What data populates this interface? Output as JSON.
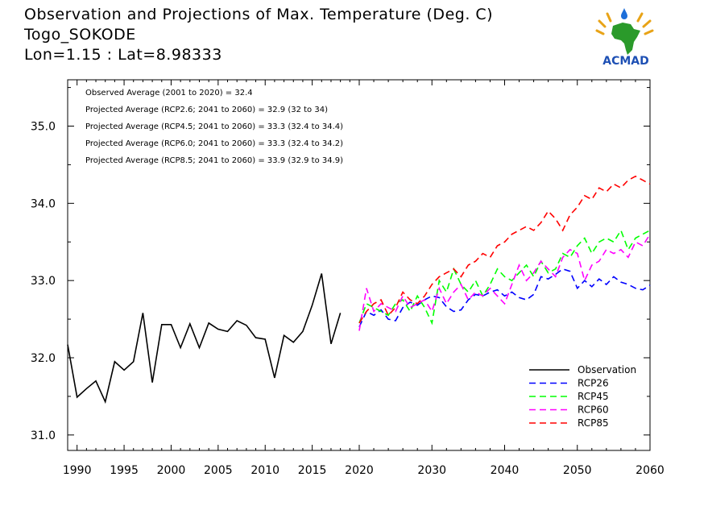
{
  "header": {
    "title_line1": "Observation and Projections of Max. Temperature (Deg. C)",
    "title_line2": "Togo_SOKODE",
    "title_line3": "Lon=1.15 : Lat=8.98333"
  },
  "logo": {
    "text": "ACMAD"
  },
  "chart_data": {
    "type": "line",
    "xlim": [
      1989,
      2060
    ],
    "ylim": [
      30.8,
      35.6
    ],
    "x_ticks": [
      1990,
      1995,
      2000,
      2005,
      2010,
      2015,
      2020,
      2030,
      2040,
      2050,
      2060
    ],
    "y_ticks": [
      31.0,
      32.0,
      33.0,
      34.0,
      35.0
    ],
    "y_tick_labels": [
      "31.0",
      "32.0",
      "33.0",
      "34.0",
      "35.0"
    ],
    "annotations": [
      "Observed Average (2001 to 2020) = 32.4",
      "Projected Average (RCP2.6; 2041 to 2060) = 32.9 (32 to 34)",
      "Projected Average (RCP4.5; 2041 to 2060) = 33.3 (32.4 to 34.4)",
      "Projected Average (RCP6.0; 2041 to 2060) = 33.3 (32.4 to 34.2)",
      "Projected Average (RCP8.5; 2041 to 2060) = 33.9 (32.9 to 34.9)"
    ],
    "legend_position": "bottom-right",
    "series": [
      {
        "name": "Observation",
        "color": "#000000",
        "dashed": false,
        "start": 1989,
        "values": [
          32.17,
          31.49,
          31.6,
          31.7,
          31.43,
          31.95,
          31.84,
          31.95,
          32.58,
          31.68,
          32.43,
          32.43,
          32.13,
          32.44,
          32.13,
          32.45,
          32.37,
          32.34,
          32.48,
          32.42,
          32.26,
          32.24,
          31.74,
          32.29,
          32.2,
          32.34,
          32.68,
          33.09,
          32.18,
          32.58
        ]
      },
      {
        "name": "RCP26",
        "color": "#0000ff",
        "dashed": true,
        "start": 2020,
        "values": [
          32.4,
          32.6,
          32.55,
          32.62,
          32.5,
          32.48,
          32.65,
          32.72,
          32.68,
          32.75,
          32.8,
          32.78,
          32.66,
          32.6,
          32.62,
          32.75,
          32.82,
          32.8,
          32.85,
          32.88,
          32.8,
          32.85,
          32.78,
          32.75,
          32.82,
          33.05,
          33.02,
          33.08,
          33.15,
          33.12,
          32.9,
          33.0,
          32.92,
          33.02,
          32.95,
          33.05,
          32.98,
          32.95,
          32.9,
          32.88,
          32.94
        ]
      },
      {
        "name": "RCP45",
        "color": "#00ff00",
        "dashed": true,
        "start": 2020,
        "values": [
          32.45,
          32.7,
          32.65,
          32.6,
          32.55,
          32.7,
          32.75,
          32.6,
          32.8,
          32.65,
          32.45,
          33.0,
          32.85,
          33.15,
          32.95,
          32.85,
          33.0,
          32.8,
          32.95,
          33.15,
          33.05,
          33.0,
          33.1,
          33.2,
          33.05,
          33.25,
          33.1,
          33.15,
          33.35,
          33.3,
          33.45,
          33.55,
          33.35,
          33.5,
          33.55,
          33.5,
          33.65,
          33.4,
          33.55,
          33.6,
          33.65
        ]
      },
      {
        "name": "RCP60",
        "color": "#ff00ff",
        "dashed": true,
        "start": 2020,
        "values": [
          32.35,
          32.9,
          32.6,
          32.7,
          32.65,
          32.6,
          32.8,
          32.65,
          32.7,
          32.75,
          32.6,
          32.9,
          32.7,
          32.85,
          32.95,
          32.75,
          32.85,
          32.8,
          32.9,
          32.8,
          32.7,
          32.95,
          33.2,
          33.0,
          33.1,
          33.25,
          33.15,
          33.05,
          33.3,
          33.4,
          33.35,
          33.0,
          33.2,
          33.25,
          33.4,
          33.35,
          33.4,
          33.3,
          33.5,
          33.45,
          33.6
        ]
      },
      {
        "name": "RCP85",
        "color": "#ff0000",
        "dashed": true,
        "start": 2020,
        "values": [
          32.45,
          32.6,
          32.7,
          32.75,
          32.55,
          32.65,
          32.85,
          32.75,
          32.7,
          32.8,
          32.95,
          33.05,
          33.1,
          33.15,
          33.05,
          33.2,
          33.25,
          33.35,
          33.3,
          33.45,
          33.5,
          33.6,
          33.65,
          33.7,
          33.65,
          33.75,
          33.9,
          33.8,
          33.65,
          33.85,
          33.95,
          34.1,
          34.05,
          34.2,
          34.15,
          34.25,
          34.2,
          34.3,
          34.35,
          34.3,
          34.25
        ]
      }
    ]
  }
}
